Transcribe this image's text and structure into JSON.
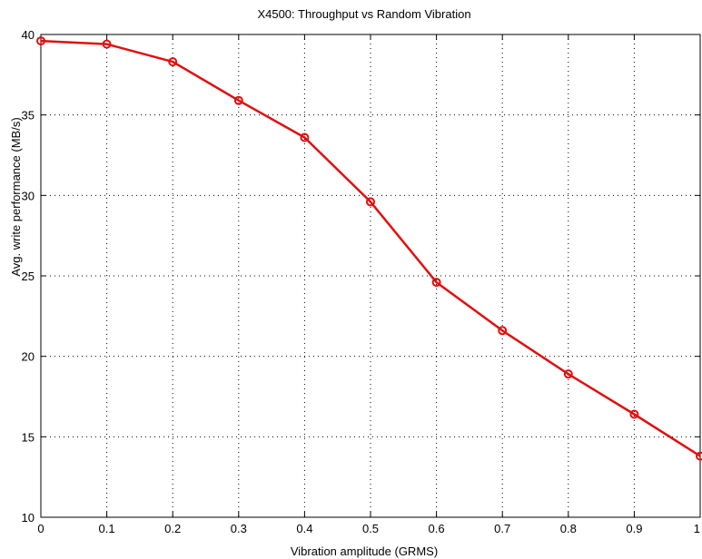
{
  "chart_data": {
    "type": "line",
    "title": "X4500: Throughput vs Random Vibration",
    "xlabel": "Vibration amplitude (GRMS)",
    "ylabel": "Avg. write performance (MB/s)",
    "xlim": [
      0,
      1
    ],
    "ylim": [
      10,
      40
    ],
    "x_ticks": [
      0,
      0.1,
      0.2,
      0.3,
      0.4,
      0.5,
      0.6,
      0.7,
      0.8,
      0.9,
      1
    ],
    "x_tick_labels": [
      "0",
      "0.1",
      "0.2",
      "0.3",
      "0.4",
      "0.5",
      "0.6",
      "0.7",
      "0.8",
      "0.9",
      "1"
    ],
    "y_ticks": [
      10,
      15,
      20,
      25,
      30,
      35,
      40
    ],
    "y_tick_labels": [
      "10",
      "15",
      "20",
      "25",
      "30",
      "35",
      "40"
    ],
    "grid": true,
    "series": [
      {
        "x": [
          0,
          0.1,
          0.2,
          0.3,
          0.4,
          0.5,
          0.6,
          0.7,
          0.8,
          0.9,
          1.0
        ],
        "y": [
          39.6,
          39.4,
          38.3,
          35.9,
          33.6,
          29.6,
          24.6,
          21.6,
          18.9,
          16.4,
          13.8
        ],
        "color": "#e01010",
        "marker": "circle"
      }
    ]
  }
}
